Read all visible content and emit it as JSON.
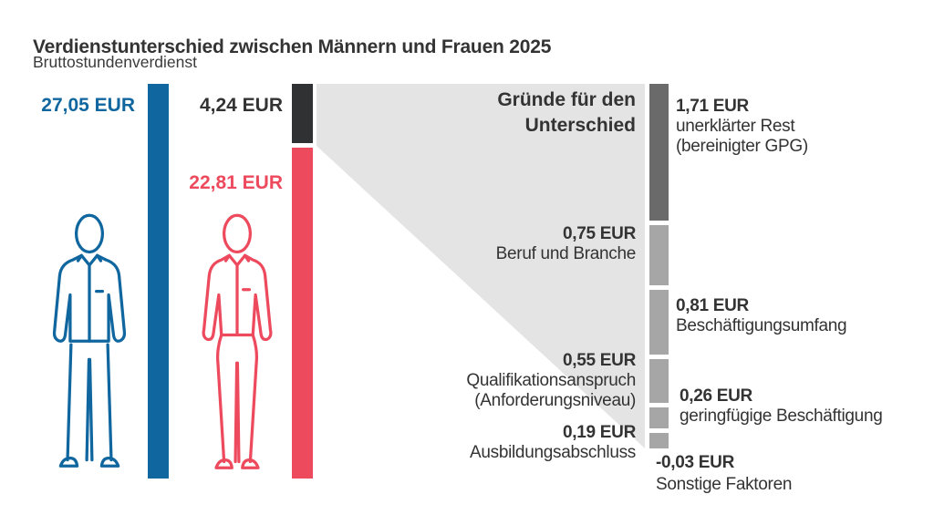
{
  "title": "Verdienstunterschied zwischen Männern und Frauen 2025",
  "subtitle": "Bruttostundenverdienst",
  "men": {
    "value_label": "27,05 EUR"
  },
  "women": {
    "value_label": "22,81 EUR"
  },
  "gap": {
    "value_label": "4,24 EUR"
  },
  "reasons_heading": {
    "line1": "Gründe für den",
    "line2": "Unterschied"
  },
  "factor_labels": {
    "rest": {
      "value": "1,71 EUR",
      "line1": "unerklärter Rest",
      "line2": "(bereinigter GPG)"
    },
    "beruf": {
      "value": "0,75 EUR",
      "line1": "Beruf und Branche"
    },
    "umfang": {
      "value": "0,81 EUR",
      "line1": "Beschäftigungsumfang"
    },
    "quali": {
      "value": "0,55 EUR",
      "line1": "Qualifikationsanspruch",
      "line2": "(Anforderungsniveau)"
    },
    "gering": {
      "value": "0,26 EUR",
      "line1": "geringfügige Beschäftigung"
    },
    "ausbildung": {
      "value": "0,19 EUR",
      "line1": "Ausbildungsabschluss"
    },
    "sonstige": {
      "value": "-0,03 EUR",
      "line1": "Sonstige Faktoren"
    }
  },
  "icons": {
    "man_icon": "standing-man-outline",
    "woman_icon": "standing-woman-outline"
  },
  "colors": {
    "men_blue": "#10669F",
    "women_red": "#EE4A5E",
    "gap_dark": "#2F3133",
    "rest_dark": "#6A6A6A",
    "factor_gray": "#A6A6A6",
    "funnel_gray": "#E4E4E4",
    "text": "#333333",
    "background": "#FFFFFF"
  },
  "chart_data": {
    "type": "bar",
    "title": "Verdienstunterschied zwischen Männern und Frauen 2025",
    "subtitle": "Bruttostundenverdienst",
    "unit": "EUR",
    "series": [
      {
        "name": "Männer Bruttostundenverdienst",
        "value": 27.05
      },
      {
        "name": "Frauen Bruttostundenverdienst",
        "value": 22.81
      },
      {
        "name": "Verdienstunterschied (Gender Pay Gap)",
        "value": 4.24
      }
    ],
    "gap_breakdown": [
      {
        "label": "unerklärter Rest (bereinigter GPG)",
        "value": 1.71
      },
      {
        "label": "Beruf und Branche",
        "value": 0.75
      },
      {
        "label": "Beschäftigungsumfang",
        "value": 0.81
      },
      {
        "label": "Qualifikationsanspruch (Anforderungsniveau)",
        "value": 0.55
      },
      {
        "label": "geringfügige Beschäftigung",
        "value": 0.26
      },
      {
        "label": "Ausbildungsabschluss",
        "value": 0.19
      },
      {
        "label": "Sonstige Faktoren",
        "value": -0.03
      }
    ],
    "layout_hints": {
      "orientation": "vertical",
      "grid": false,
      "legend": false
    }
  }
}
